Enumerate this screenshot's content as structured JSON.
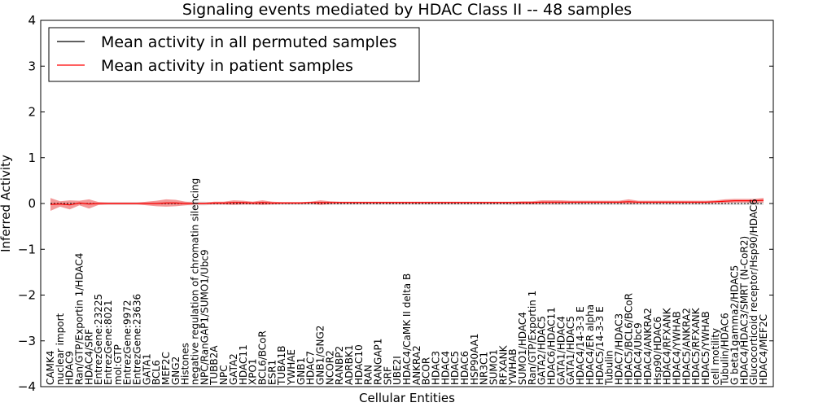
{
  "chart_data": {
    "type": "line",
    "title": "Signaling events mediated by HDAC Class II -- 48 samples",
    "xlabel": "Cellular Entities",
    "ylabel": "Inferred Activity",
    "ylim": [
      -4,
      4
    ],
    "yticks": [
      "−4",
      "−3",
      "−2",
      "−1",
      "0",
      "1",
      "2",
      "3",
      "4"
    ],
    "grid": false,
    "legend_position": "top-left",
    "series": [
      {
        "name": "Mean activity in all permuted samples",
        "color": "#000000"
      },
      {
        "name": "Mean activity in patient samples",
        "color": "#ff0000",
        "band_color": "#f08080"
      }
    ],
    "categories": [
      "CAMK4",
      "nuclear import",
      "HDAC9",
      "Ran/GTP/Exportin 1/HDAC4",
      "HDAC4/SRF",
      "EntrezGene:23225",
      "EntrezGene:8021",
      "mol:GTP",
      "EntrezGene:9972",
      "EntrezGene:23636",
      "GATA1",
      "BCL6",
      "MEF2C",
      "GNG2",
      "Histones",
      "negative regulation of chromatin silencing",
      "NPC/RanGAP1/SUMO1/Ubc9",
      "TUBB2A",
      "NPC",
      "GATA2",
      "HDAC11",
      "XPO1",
      "BCL6/BCoR",
      "ESR1",
      "TUBA1B",
      "YWHAE",
      "GNB1",
      "HDAC7",
      "GNB1/GNG2",
      "NCOR2",
      "RANBP2",
      "ADRBK1",
      "HDAC10",
      "RAN",
      "RANGAP1",
      "SRF",
      "UBE2I",
      "HDAC4/CaMK II delta B",
      "ANKRA2",
      "BCOR",
      "HDAC3",
      "HDAC4",
      "HDAC5",
      "HDAC6",
      "HSP90AA1",
      "NR3C1",
      "SUMO1",
      "RFXANK",
      "YWHAB",
      "SUMO1/HDAC4",
      "Ran/GTP/Exportin 1",
      "GATA2/HDAC5",
      "HDAC6/HDAC11",
      "GATA1/HDAC4",
      "GATA1/HDAC5",
      "HDAC4/14-3-3 E",
      "HDAC4/ER alpha",
      "HDAC5/14-3-3 E",
      "Tubulin",
      "HDAC7/HDAC3",
      "HDAC5/BCL6/BCoR",
      "HDAC4/Ubc9",
      "HDAC4/ANKRA2",
      "Hsp90/HDAC6",
      "HDAC4/RFXANK",
      "HDAC4/YWHAB",
      "HDAC5/ANKRA2",
      "HDAC5/RFXANK",
      "HDAC5/YWHAB",
      "cell motility",
      "Tubulin/HDAC6",
      "G beta1gamma2/HDAC5",
      "HDAC4/HDAC3/SMRT (N-CoR2)",
      "Glucocorticoid receptor/Hsp90/HDAC6",
      "HDAC4/MEF2C"
    ],
    "patient_mean": [
      -0.02,
      -0.01,
      -0.03,
      0.01,
      -0.01,
      0.0,
      0.0,
      0.0,
      0.0,
      0.0,
      0.0,
      0.0,
      0.01,
      0.01,
      0.0,
      0.0,
      0.0,
      0.01,
      0.01,
      0.02,
      0.02,
      0.01,
      0.02,
      0.01,
      0.01,
      0.01,
      0.01,
      0.02,
      0.02,
      0.02,
      0.02,
      0.02,
      0.02,
      0.02,
      0.02,
      0.02,
      0.02,
      0.02,
      0.02,
      0.02,
      0.02,
      0.02,
      0.02,
      0.02,
      0.02,
      0.02,
      0.02,
      0.02,
      0.02,
      0.02,
      0.02,
      0.03,
      0.03,
      0.03,
      0.03,
      0.03,
      0.03,
      0.03,
      0.03,
      0.03,
      0.04,
      0.03,
      0.03,
      0.03,
      0.03,
      0.03,
      0.03,
      0.03,
      0.03,
      0.04,
      0.05,
      0.06,
      0.06,
      0.06,
      0.07
    ],
    "patient_spread": [
      0.14,
      0.06,
      0.1,
      0.05,
      0.1,
      0.03,
      0.02,
      0.02,
      0.02,
      0.02,
      0.04,
      0.06,
      0.08,
      0.07,
      0.04,
      0.02,
      0.02,
      0.03,
      0.03,
      0.05,
      0.04,
      0.03,
      0.05,
      0.03,
      0.02,
      0.02,
      0.02,
      0.02,
      0.05,
      0.03,
      0.02,
      0.02,
      0.02,
      0.02,
      0.02,
      0.02,
      0.02,
      0.02,
      0.02,
      0.02,
      0.02,
      0.02,
      0.02,
      0.02,
      0.02,
      0.02,
      0.02,
      0.02,
      0.02,
      0.03,
      0.03,
      0.04,
      0.04,
      0.04,
      0.03,
      0.03,
      0.03,
      0.03,
      0.03,
      0.03,
      0.05,
      0.03,
      0.03,
      0.03,
      0.03,
      0.03,
      0.03,
      0.03,
      0.03,
      0.03,
      0.04,
      0.04,
      0.04,
      0.04,
      0.05
    ],
    "permuted_mean": [
      0.0,
      0.0,
      0.0,
      0.0,
      0.0,
      0.0,
      0.0,
      0.0,
      0.0,
      0.0,
      0.0,
      0.0,
      0.0,
      0.0,
      0.0,
      0.0,
      0.0,
      0.0,
      0.0,
      0.0,
      0.0,
      0.0,
      0.0,
      0.0,
      0.0,
      0.0,
      0.0,
      0.0,
      0.0,
      0.0,
      0.0,
      0.0,
      0.0,
      0.0,
      0.0,
      0.0,
      0.0,
      0.0,
      0.0,
      0.0,
      0.0,
      0.0,
      0.0,
      0.0,
      0.0,
      0.0,
      0.0,
      0.0,
      0.0,
      0.0,
      0.0,
      0.0,
      0.0,
      0.0,
      0.0,
      0.0,
      0.0,
      0.0,
      0.0,
      0.0,
      0.0,
      0.0,
      0.0,
      0.0,
      0.0,
      0.0,
      0.0,
      0.0,
      0.0,
      0.0,
      0.0,
      0.0,
      0.0,
      0.0,
      0.0
    ],
    "permuted_spread": [
      0.03,
      0.03,
      0.03,
      0.03,
      0.03,
      0.03,
      0.03,
      0.03,
      0.03,
      0.03,
      0.03,
      0.03,
      0.04,
      0.04,
      0.04,
      0.04,
      0.04,
      0.03,
      0.03,
      0.03,
      0.03,
      0.03,
      0.03,
      0.03,
      0.03,
      0.03,
      0.03,
      0.03,
      0.03,
      0.03,
      0.03,
      0.03,
      0.03,
      0.03,
      0.03,
      0.03,
      0.03,
      0.03,
      0.03,
      0.03,
      0.03,
      0.03,
      0.03,
      0.03,
      0.03,
      0.03,
      0.03,
      0.03,
      0.04,
      0.03,
      0.03,
      0.03,
      0.03,
      0.03,
      0.03,
      0.03,
      0.03,
      0.03,
      0.03,
      0.03,
      0.03,
      0.03,
      0.03,
      0.03,
      0.03,
      0.03,
      0.03,
      0.03,
      0.03,
      0.03,
      0.03,
      0.03,
      0.03,
      0.03,
      0.03
    ]
  }
}
